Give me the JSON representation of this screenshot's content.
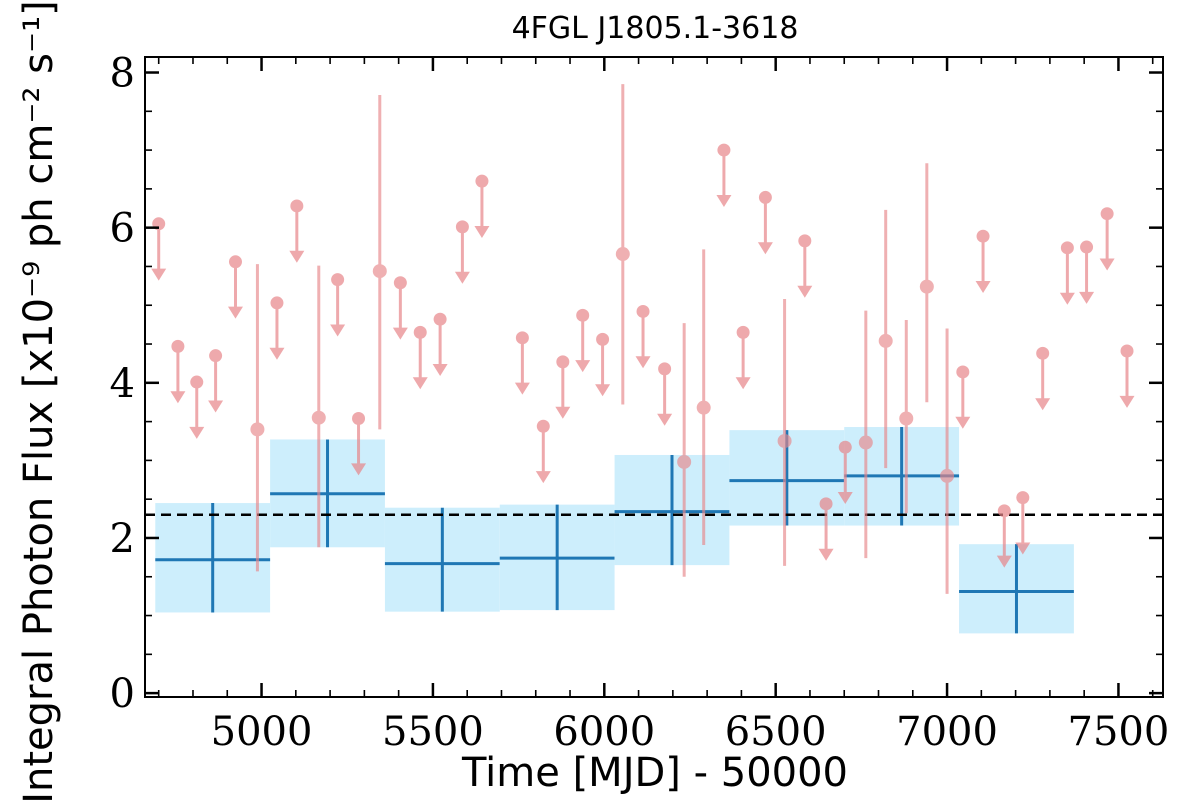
{
  "chart_data": {
    "type": "scatter",
    "title": "4FGL J1805.1-3618",
    "xlabel": "Time [MJD] - 50000",
    "ylabel": "Integral Photon Flux [x10⁻⁹ ph cm⁻² s⁻¹]",
    "xlim": [
      4660,
      7630
    ],
    "ylim": [
      -0.05,
      8.2
    ],
    "x_ticks": [
      5000,
      5500,
      6000,
      6500,
      7000,
      7500
    ],
    "y_ticks": [
      0,
      2,
      4,
      6,
      8
    ],
    "x_tick_labels": [
      "5000",
      "5500",
      "6000",
      "6500",
      "7000",
      "7500"
    ],
    "y_tick_labels": [
      "0",
      "2",
      "4",
      "6",
      "8"
    ],
    "mean_flux": 2.3,
    "colors": {
      "point": "#e8868a",
      "bin_line": "#1f77b4",
      "bin_fill": "#cdeefc",
      "mean_line": "#000000"
    },
    "upper_limits": [
      {
        "x": 4700,
        "y": 6.05
      },
      {
        "x": 4756,
        "y": 4.47
      },
      {
        "x": 4811,
        "y": 4.01
      },
      {
        "x": 4866,
        "y": 4.35
      },
      {
        "x": 4924,
        "y": 5.56
      },
      {
        "x": 5045,
        "y": 5.03
      },
      {
        "x": 5103,
        "y": 6.28
      },
      {
        "x": 5222,
        "y": 5.33
      },
      {
        "x": 5283,
        "y": 3.54
      },
      {
        "x": 5405,
        "y": 5.29
      },
      {
        "x": 5463,
        "y": 4.65
      },
      {
        "x": 5521,
        "y": 4.82
      },
      {
        "x": 5586,
        "y": 6.01
      },
      {
        "x": 5643,
        "y": 6.6
      },
      {
        "x": 5761,
        "y": 4.58
      },
      {
        "x": 5822,
        "y": 3.44
      },
      {
        "x": 5879,
        "y": 4.27
      },
      {
        "x": 5937,
        "y": 4.87
      },
      {
        "x": 5995,
        "y": 4.56
      },
      {
        "x": 6113,
        "y": 4.92
      },
      {
        "x": 6176,
        "y": 4.18
      },
      {
        "x": 6349,
        "y": 7.0
      },
      {
        "x": 6405,
        "y": 4.65
      },
      {
        "x": 6470,
        "y": 6.39
      },
      {
        "x": 6585,
        "y": 5.83
      },
      {
        "x": 6647,
        "y": 2.44
      },
      {
        "x": 6703,
        "y": 3.17
      },
      {
        "x": 7105,
        "y": 5.89
      },
      {
        "x": 7046,
        "y": 4.14
      },
      {
        "x": 7167,
        "y": 2.35
      },
      {
        "x": 7221,
        "y": 2.52
      },
      {
        "x": 7279,
        "y": 4.38
      },
      {
        "x": 7351,
        "y": 5.74
      },
      {
        "x": 7407,
        "y": 5.75
      },
      {
        "x": 7467,
        "y": 6.18
      },
      {
        "x": 7525,
        "y": 4.41
      }
    ],
    "detections": [
      {
        "x": 4988,
        "y": 3.4,
        "low": 1.57,
        "high": 5.53
      },
      {
        "x": 5167,
        "y": 3.55,
        "low": 1.88,
        "high": 5.51
      },
      {
        "x": 5345,
        "y": 5.44,
        "low": 3.4,
        "high": 7.71
      },
      {
        "x": 6054,
        "y": 5.66,
        "low": 3.72,
        "high": 7.85
      },
      {
        "x": 6233,
        "y": 2.98,
        "low": 1.5,
        "high": 4.77
      },
      {
        "x": 6290,
        "y": 3.68,
        "low": 1.91,
        "high": 5.72
      },
      {
        "x": 6526,
        "y": 3.25,
        "low": 1.64,
        "high": 5.08
      },
      {
        "x": 6763,
        "y": 3.23,
        "low": 1.74,
        "high": 4.93
      },
      {
        "x": 6821,
        "y": 4.54,
        "low": 2.9,
        "high": 6.23
      },
      {
        "x": 6881,
        "y": 3.54,
        "low": 2.32,
        "high": 4.81
      },
      {
        "x": 6941,
        "y": 5.24,
        "low": 3.75,
        "high": 6.83
      },
      {
        "x": 7000,
        "y": 2.8,
        "low": 1.28,
        "high": 4.7
      }
    ],
    "bins": [
      {
        "x0": 4690,
        "x1": 5025,
        "y": 1.72,
        "low": 1.04,
        "high": 2.45
      },
      {
        "x0": 5025,
        "x1": 5360,
        "y": 2.57,
        "low": 1.88,
        "high": 3.27
      },
      {
        "x0": 5360,
        "x1": 5695,
        "y": 1.67,
        "low": 1.05,
        "high": 2.39
      },
      {
        "x0": 5695,
        "x1": 6030,
        "y": 1.74,
        "low": 1.07,
        "high": 2.43
      },
      {
        "x0": 6030,
        "x1": 6365,
        "y": 2.34,
        "low": 1.65,
        "high": 3.07
      },
      {
        "x0": 6365,
        "x1": 6700,
        "y": 2.74,
        "low": 2.16,
        "high": 3.39
      },
      {
        "x0": 6700,
        "x1": 7035,
        "y": 2.8,
        "low": 2.16,
        "high": 3.43
      },
      {
        "x0": 7035,
        "x1": 7370,
        "y": 1.31,
        "low": 0.77,
        "high": 1.92
      }
    ]
  }
}
